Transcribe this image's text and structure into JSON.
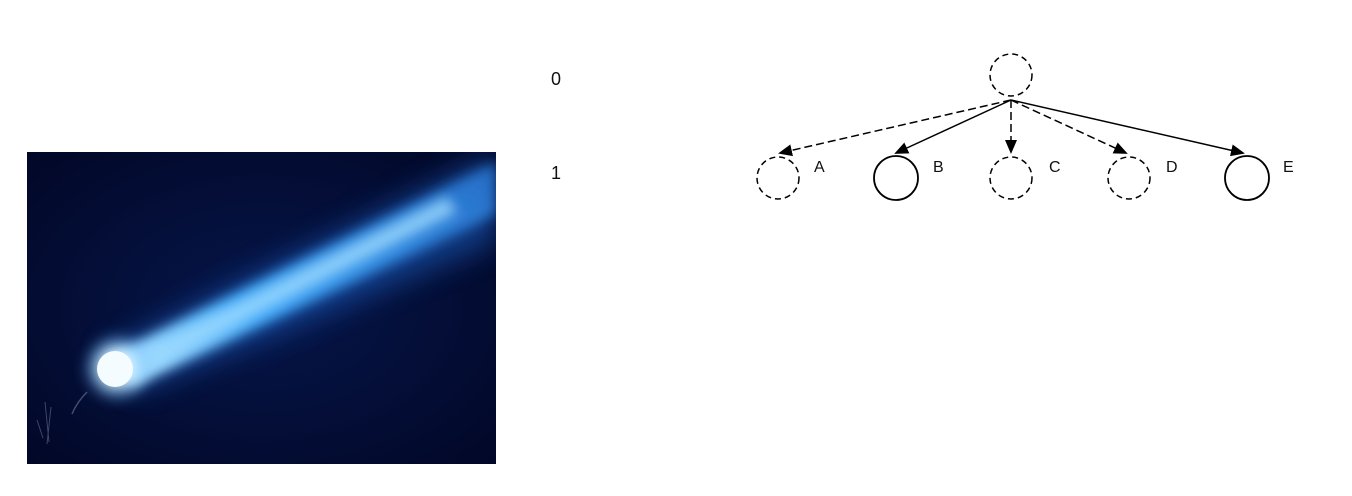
{
  "image": {
    "subject": "comet-photo"
  },
  "levels": {
    "level_0": "0",
    "level_1": "1"
  },
  "tree": {
    "nodes": [
      {
        "label": "A",
        "style": "dashed"
      },
      {
        "label": "B",
        "style": "solid"
      },
      {
        "label": "C",
        "style": "dashed"
      },
      {
        "label": "D",
        "style": "dashed"
      },
      {
        "label": "E",
        "style": "solid"
      }
    ],
    "root_style": "dashed"
  },
  "colors": {
    "line": "#000000",
    "comet_glow": "#3aa0ff",
    "sky": "#020a2a"
  }
}
